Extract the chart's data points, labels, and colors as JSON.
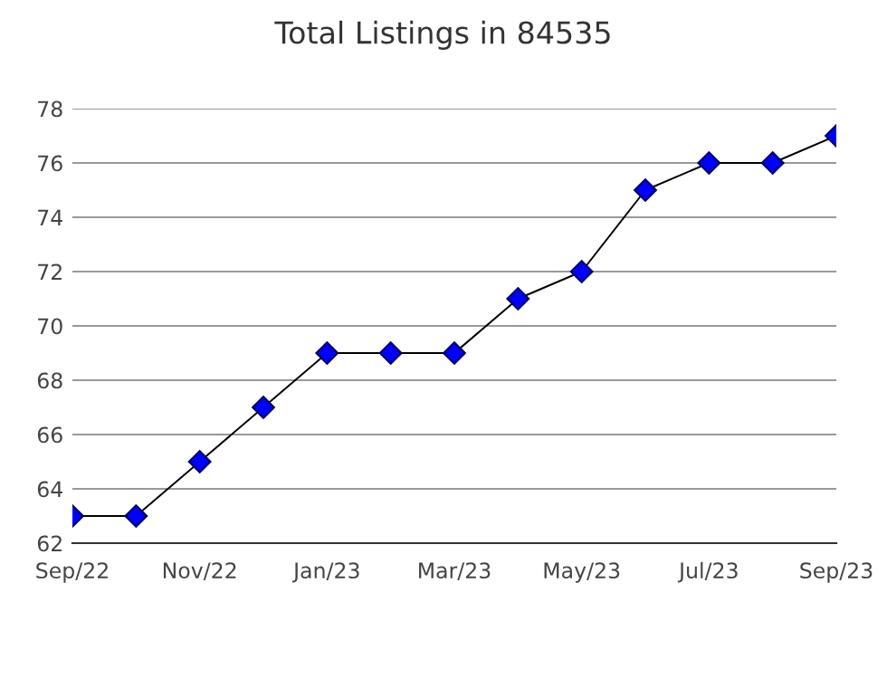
{
  "chart_data": {
    "type": "line",
    "title": "Total Listings in 84535",
    "categories": [
      "Sep/22",
      null,
      "Nov/22",
      null,
      "Jan/23",
      null,
      "Mar/23",
      null,
      "May/23",
      null,
      "Jul/23",
      null,
      "Sep/23"
    ],
    "series": [
      {
        "color": "#0000ff",
        "values": [
          63,
          63,
          65,
          67,
          69,
          69,
          69,
          71,
          72,
          75,
          76,
          76,
          77
        ]
      }
    ],
    "ylim": [
      62,
      78
    ],
    "yticks": [
      62,
      64,
      66,
      68,
      70,
      72,
      74,
      76,
      78
    ],
    "grid": "y",
    "marker": "diamond",
    "line_style": "solid",
    "legend": false
  }
}
